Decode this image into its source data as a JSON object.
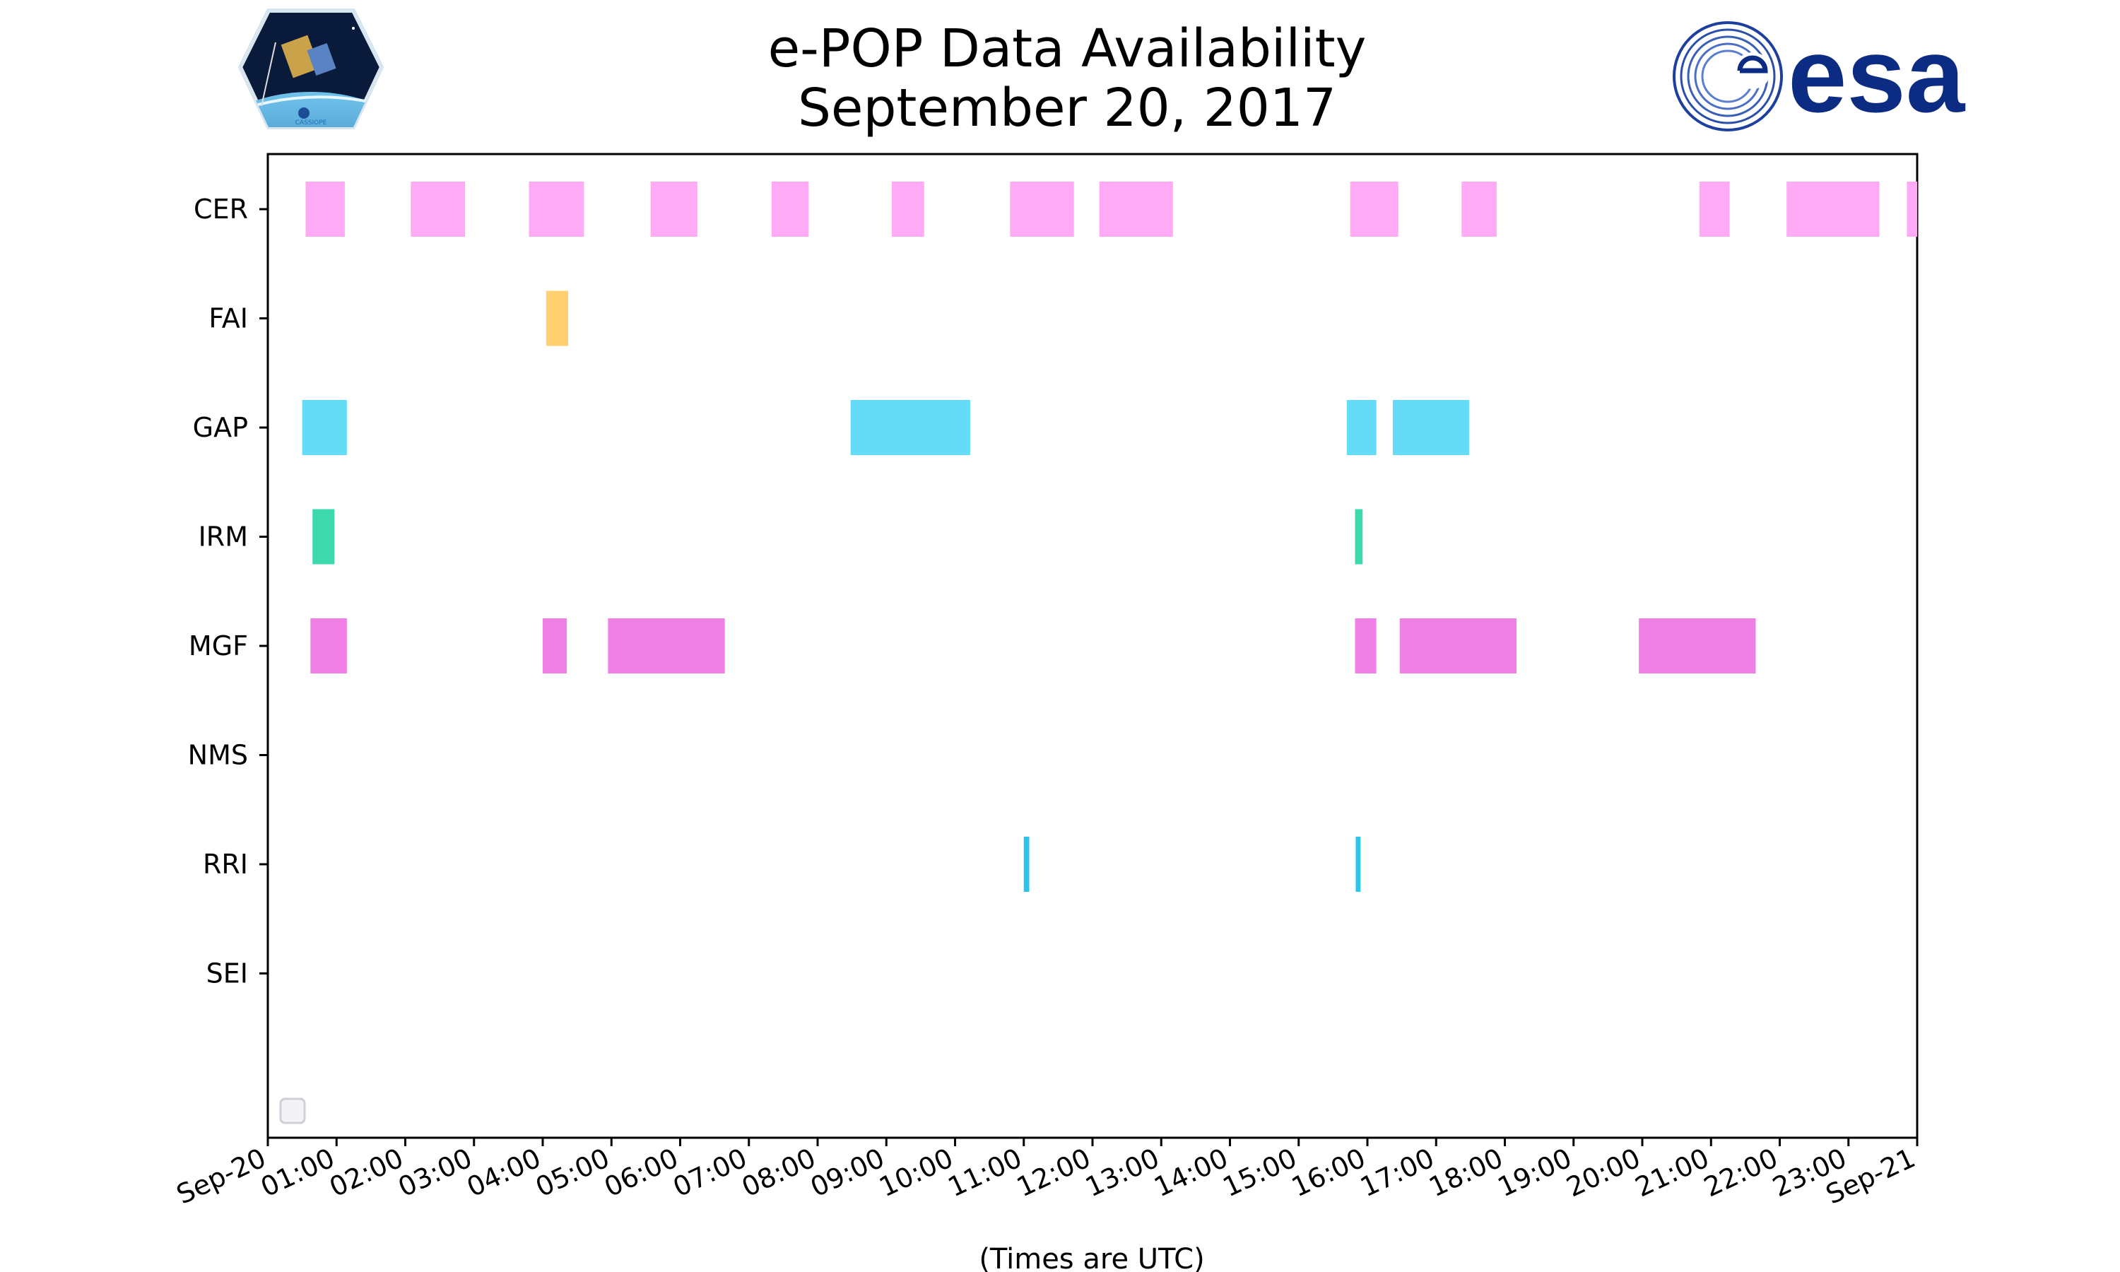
{
  "chart_data": {
    "type": "bar",
    "orientation": "horizontal-timeline",
    "title": [
      "e-POP Data Availability",
      "September 20, 2017"
    ],
    "xlabel": "(Times are UTC)",
    "ylabel": "",
    "xlim": [
      0,
      24
    ],
    "x_unit": "hours since Sep-20 00:00 UTC",
    "grid": false,
    "legend": "empty box, lower-left",
    "x_tick_labels": [
      "Sep-20",
      "01:00",
      "02:00",
      "03:00",
      "04:00",
      "05:00",
      "06:00",
      "07:00",
      "08:00",
      "09:00",
      "10:00",
      "11:00",
      "12:00",
      "13:00",
      "14:00",
      "15:00",
      "16:00",
      "17:00",
      "18:00",
      "19:00",
      "20:00",
      "21:00",
      "22:00",
      "23:00",
      "Sep-21"
    ],
    "categories": [
      "CER",
      "FAI",
      "GAP",
      "IRM",
      "MGF",
      "NMS",
      "RRI",
      "SEI"
    ],
    "series": [
      {
        "name": "CER",
        "color": "#ffaaf5",
        "intervals": [
          [
            0.55,
            1.12
          ],
          [
            2.08,
            2.87
          ],
          [
            3.8,
            4.6
          ],
          [
            5.57,
            6.25
          ],
          [
            7.33,
            7.87
          ],
          [
            9.08,
            9.55
          ],
          [
            10.8,
            11.73
          ],
          [
            12.1,
            13.17
          ],
          [
            15.75,
            16.45
          ],
          [
            17.37,
            17.88
          ],
          [
            20.83,
            21.27
          ],
          [
            22.1,
            23.45
          ],
          [
            23.85,
            24.0
          ]
        ]
      },
      {
        "name": "FAI",
        "color": "#ffcf70",
        "intervals": [
          [
            4.05,
            4.37
          ]
        ]
      },
      {
        "name": "GAP",
        "color": "#64dcf8",
        "intervals": [
          [
            0.5,
            1.15
          ],
          [
            8.48,
            10.22
          ],
          [
            15.7,
            16.13
          ],
          [
            16.37,
            17.48
          ]
        ]
      },
      {
        "name": "IRM",
        "color": "#3dd8ac",
        "intervals": [
          [
            0.65,
            0.97
          ],
          [
            15.82,
            15.93
          ]
        ]
      },
      {
        "name": "MGF",
        "color": "#f080e6",
        "intervals": [
          [
            0.62,
            1.15
          ],
          [
            4.0,
            4.35
          ],
          [
            4.95,
            6.65
          ],
          [
            15.82,
            16.13
          ],
          [
            16.47,
            18.17
          ],
          [
            19.95,
            21.65
          ]
        ]
      },
      {
        "name": "NMS",
        "color": "#9fb2ff",
        "intervals": []
      },
      {
        "name": "RRI",
        "color": "#2cc4ea",
        "intervals": [
          [
            11.0,
            11.08
          ],
          [
            15.83,
            15.9
          ]
        ]
      },
      {
        "name": "SEI",
        "color": "#a0a0a0",
        "intervals": []
      }
    ]
  },
  "logos": {
    "left": {
      "name": "CASSIOPE mission patch",
      "text": "CASSIOPE"
    },
    "right": {
      "name": "ESA logo",
      "text": "esa",
      "color": "#0b2c82"
    }
  }
}
